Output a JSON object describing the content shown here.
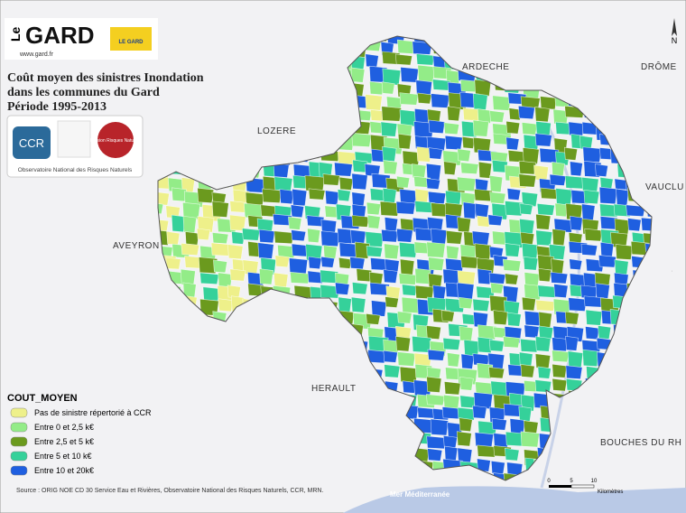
{
  "header": {
    "logo_left": "Le",
    "logo_main": "GARD",
    "logo_url": "www.gard.fr",
    "logo_badge": "LE GARD"
  },
  "title": [
    "Coût moyen des sinistres Inondation",
    "dans les communes du Gard",
    "Période 1995-2013"
  ],
  "partners": {
    "ccr": "CCR",
    "mission": "Mission Risques Naturels",
    "observatoire": "Observatoire National des Risques Naturels"
  },
  "regions": [
    {
      "name": "ARDECHE"
    },
    {
      "name": "DRÔME"
    },
    {
      "name": "LOZERE"
    },
    {
      "name": "VAUCLU"
    },
    {
      "name": "AVEYRON"
    },
    {
      "name": "HERAULT"
    },
    {
      "name": "BOUCHES DU RH"
    }
  ],
  "sea": "Mer Méditerranée",
  "north": "N",
  "legend": {
    "title": "COUT_MOYEN",
    "items": [
      {
        "label": "Pas de sinistre répertorié à CCR",
        "color": "#eef08a"
      },
      {
        "label": "Entre 0 et 2,5 k€",
        "color": "#93ec88"
      },
      {
        "label": "Entre 2,5 et 5 k€",
        "color": "#6b9a1e"
      },
      {
        "label": "Entre 5 et 10 k€",
        "color": "#35d19a"
      },
      {
        "label": "Entre 10 et 20k€",
        "color": "#1f5fe0"
      }
    ]
  },
  "scale": {
    "ticks": [
      "0",
      "5",
      "10"
    ],
    "unit": "Kilomètres"
  },
  "source": "Source : ORIG NOE CD 30 Service Eau et Rivières, Observatoire National des Risques Naturels, CCR, MRN."
}
